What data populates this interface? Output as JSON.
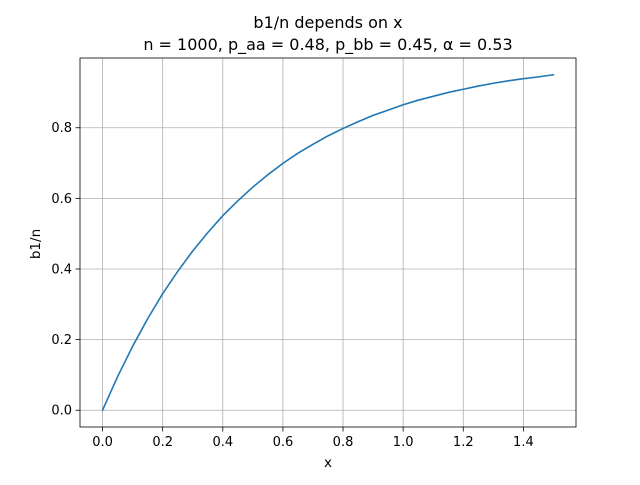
{
  "chart_data": {
    "type": "line",
    "title_lines": [
      "b1/n depends on x",
      "n = 1000, p_aa = 0.48, p_bb = 0.45, α = 0.53"
    ],
    "xlabel": "x",
    "ylabel": "b1/n",
    "xlim": [
      -0.075,
      1.575
    ],
    "ylim": [
      -0.0475,
      0.9975
    ],
    "x_ticks": [
      "0.0",
      "0.2",
      "0.4",
      "0.6",
      "0.8",
      "1.0",
      "1.2",
      "1.4"
    ],
    "y_ticks": [
      "0.0",
      "0.2",
      "0.4",
      "0.6",
      "0.8"
    ],
    "grid": true,
    "legend": false,
    "line_color": "#1f77b4",
    "grid_color": "#b0b0b0",
    "series": [
      {
        "x": [
          0.0,
          0.05,
          0.1,
          0.15,
          0.2,
          0.25,
          0.3,
          0.35,
          0.4,
          0.45,
          0.5,
          0.55,
          0.6,
          0.65,
          0.7,
          0.75,
          0.8,
          0.85,
          0.9,
          0.95,
          1.0,
          1.05,
          1.1,
          1.15,
          1.2,
          1.25,
          1.3,
          1.35,
          1.4,
          1.45,
          1.5
        ],
        "values": [
          0.0,
          0.095,
          0.181,
          0.259,
          0.33,
          0.393,
          0.451,
          0.503,
          0.551,
          0.593,
          0.632,
          0.667,
          0.699,
          0.728,
          0.753,
          0.777,
          0.798,
          0.817,
          0.835,
          0.85,
          0.865,
          0.878,
          0.889,
          0.9,
          0.909,
          0.918,
          0.926,
          0.933,
          0.939,
          0.944,
          0.95
        ]
      }
    ]
  }
}
